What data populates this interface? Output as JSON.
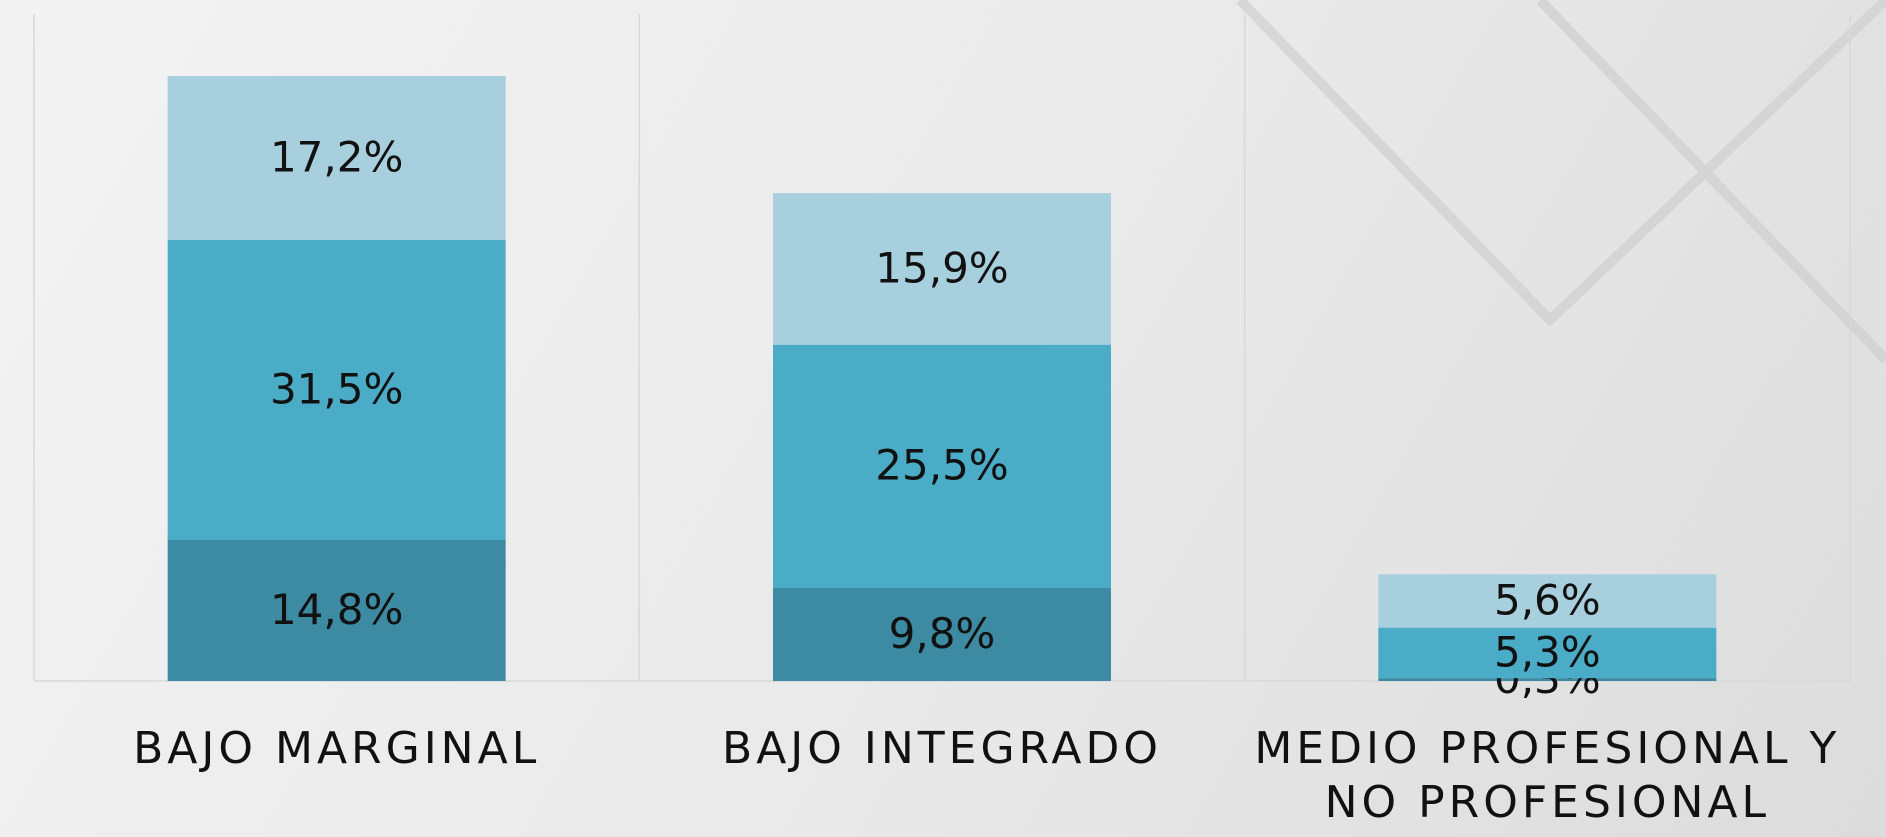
{
  "chart_data": {
    "type": "stacked_bar",
    "categories": [
      "BAJO MARGINAL",
      "BAJO INTEGRADO",
      "MEDIO PROFESIONAL Y NO PROFESIONAL"
    ],
    "series": [
      {
        "color": "#3d8aa3",
        "values": [
          14.8,
          9.8,
          0.3
        ],
        "value_labels": [
          "14,8%",
          "9,8%",
          "0,3%"
        ]
      },
      {
        "color": "#4aacc6",
        "values": [
          31.5,
          25.5,
          5.3
        ],
        "value_labels": [
          "31,5%",
          "25,5%",
          "5,3%"
        ]
      },
      {
        "color": "#a8cfdd",
        "values": [
          17.2,
          15.9,
          5.6
        ],
        "value_labels": [
          "17,2%",
          "15,9%",
          "5,6%"
        ]
      }
    ]
  }
}
